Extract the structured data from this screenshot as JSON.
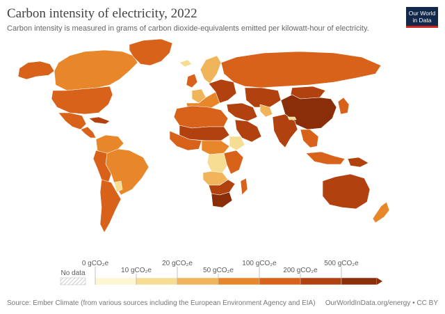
{
  "header": {
    "title": "Carbon intensity of electricity, 2022",
    "subtitle": "Carbon intensity is measured in grams of carbon dioxide-equivalents emitted per kilowatt-hour of electricity."
  },
  "logo": {
    "line1": "Our World",
    "line2": "in Data"
  },
  "legend": {
    "no_data_label": "No data",
    "bins": [
      {
        "label": "0 gCO₂e",
        "color": "#fcf6d3"
      },
      {
        "label": "10 gCO₂e",
        "color": "#f6dd93"
      },
      {
        "label": "20 gCO₂e",
        "color": "#f0b45a"
      },
      {
        "label": "50 gCO₂e",
        "color": "#e8862a"
      },
      {
        "label": "100 gCO₂e",
        "color": "#d9621b"
      },
      {
        "label": "200 gCO₂e",
        "color": "#b1410f"
      },
      {
        "label": "500 gCO₂e",
        "color": "#8a2e0a"
      }
    ]
  },
  "map": {
    "colors": {
      "high": "#8a2e0a",
      "mid_high": "#b1410f",
      "mid": "#d9621b",
      "mid_low": "#e8862a",
      "low": "#f0b45a",
      "very_low": "#f6dd93"
    },
    "regions": [
      {
        "name": "canada",
        "level": "mid_low"
      },
      {
        "name": "alaska",
        "level": "mid"
      },
      {
        "name": "greenland",
        "level": "mid"
      },
      {
        "name": "united-states",
        "level": "mid"
      },
      {
        "name": "mexico",
        "level": "mid"
      },
      {
        "name": "central-america",
        "level": "mid"
      },
      {
        "name": "caribbean",
        "level": "mid_high"
      },
      {
        "name": "colombia-venezuela",
        "level": "mid_low"
      },
      {
        "name": "brazil",
        "level": "mid_low"
      },
      {
        "name": "peru-bolivia",
        "level": "mid"
      },
      {
        "name": "argentina-chile",
        "level": "mid"
      },
      {
        "name": "paraguay",
        "level": "very_low"
      },
      {
        "name": "iceland",
        "level": "very_low"
      },
      {
        "name": "scandinavia",
        "level": "low"
      },
      {
        "name": "uk-ireland",
        "level": "mid"
      },
      {
        "name": "western-europe",
        "level": "mid_low"
      },
      {
        "name": "france",
        "level": "low"
      },
      {
        "name": "eastern-europe",
        "level": "mid_high"
      },
      {
        "name": "russia",
        "level": "mid"
      },
      {
        "name": "north-africa",
        "level": "mid"
      },
      {
        "name": "sahel",
        "level": "mid_high"
      },
      {
        "name": "west-africa",
        "level": "mid"
      },
      {
        "name": "central-africa",
        "level": "mid_low"
      },
      {
        "name": "congo-drc",
        "level": "very_low"
      },
      {
        "name": "ethiopia",
        "level": "very_low"
      },
      {
        "name": "east-africa",
        "level": "mid"
      },
      {
        "name": "angola-zambia",
        "level": "low"
      },
      {
        "name": "southern-africa",
        "level": "mid_high"
      },
      {
        "name": "south-africa",
        "level": "high"
      },
      {
        "name": "madagascar",
        "level": "mid"
      },
      {
        "name": "middle-east",
        "level": "mid_high"
      },
      {
        "name": "arabia",
        "level": "mid_high"
      },
      {
        "name": "central-asia",
        "level": "mid_high"
      },
      {
        "name": "afghanistan",
        "level": "low"
      },
      {
        "name": "mongolia",
        "level": "mid_high"
      },
      {
        "name": "china",
        "level": "high"
      },
      {
        "name": "india",
        "level": "mid_high"
      },
      {
        "name": "nepal",
        "level": "very_low"
      },
      {
        "name": "southeast-asia",
        "level": "mid"
      },
      {
        "name": "japan-korea",
        "level": "mid"
      },
      {
        "name": "indonesia",
        "level": "mid"
      },
      {
        "name": "papua",
        "level": "mid_high"
      },
      {
        "name": "australia",
        "level": "mid_high"
      },
      {
        "name": "new-zealand",
        "level": "mid_low"
      }
    ]
  },
  "footer": {
    "source": "Source: Ember Climate (from various sources including the European Environment Agency and EIA)",
    "credit": "OurWorldInData.org/energy • CC BY"
  }
}
